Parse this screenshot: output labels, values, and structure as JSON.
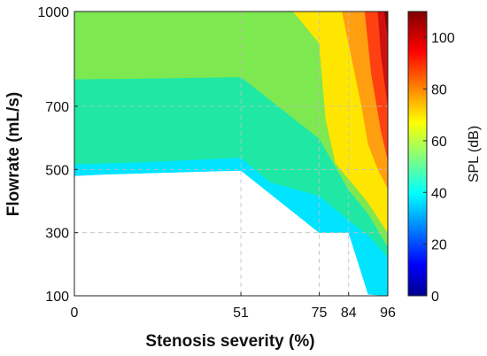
{
  "chart_data": {
    "type": "contour",
    "title": "",
    "xlabel": "Stenosis severity (%)",
    "ylabel": "Flowrate (mL/s)",
    "xlim": [
      0,
      96
    ],
    "ylim": [
      100,
      1000
    ],
    "xticks": [
      0,
      51,
      75,
      84,
      96
    ],
    "yticks": [
      100,
      300,
      500,
      700,
      1000
    ],
    "grid": "dashed",
    "z_unit": "SPL (dB)",
    "background_region": "white (below lowest contour level)",
    "levels": [
      {
        "level": 40,
        "color": "#00e4ff",
        "boundary": [
          [
            0,
            480
          ],
          [
            10,
            485
          ],
          [
            51,
            497
          ],
          [
            75,
            300
          ],
          [
            84,
            300
          ],
          [
            90,
            105
          ],
          [
            96,
            100
          ]
        ]
      },
      {
        "level": 50,
        "color": "#1fe8a4",
        "boundary": [
          [
            0,
            517
          ],
          [
            20,
            523
          ],
          [
            51,
            538
          ],
          [
            60,
            460
          ],
          [
            75,
            417
          ],
          [
            84,
            340
          ],
          [
            90,
            292
          ],
          [
            96,
            223
          ]
        ]
      },
      {
        "level": 60,
        "color": "#7de850",
        "boundary": [
          [
            0,
            786
          ],
          [
            20,
            788
          ],
          [
            51,
            793
          ],
          [
            60,
            720
          ],
          [
            75,
            598
          ],
          [
            84,
            436
          ],
          [
            90,
            360
          ],
          [
            96,
            255
          ]
        ]
      },
      {
        "level": 70,
        "color": "#ffe600",
        "boundary": [
          [
            67,
            1000
          ],
          [
            75,
            900
          ],
          [
            77,
            660
          ],
          [
            80,
            520
          ],
          [
            84,
            470
          ],
          [
            90,
            395
          ],
          [
            96,
            300
          ]
        ]
      },
      {
        "level": 80,
        "color": "#ff9f10",
        "boundary": [
          [
            82,
            1000
          ],
          [
            84,
            900
          ],
          [
            88,
            700
          ],
          [
            90,
            580
          ],
          [
            93,
            500
          ],
          [
            96,
            440
          ]
        ]
      },
      {
        "level": 90,
        "color": "#ff4010",
        "boundary": [
          [
            89,
            1000
          ],
          [
            91,
            800
          ],
          [
            94,
            620
          ],
          [
            96,
            530
          ]
        ]
      },
      {
        "level": 100,
        "color": "#cf1010",
        "boundary": [
          [
            93,
            1000
          ],
          [
            94,
            860
          ],
          [
            96,
            700
          ]
        ]
      },
      {
        "level": 110,
        "color": "#8a0000",
        "boundary": [
          [
            95,
            1000
          ],
          [
            96,
            920
          ]
        ]
      }
    ],
    "colorbar": {
      "label": "SPL (dB)",
      "range": [
        0,
        110
      ],
      "ticks": [
        0,
        20,
        40,
        60,
        80,
        100
      ],
      "colormap": "jet"
    }
  }
}
